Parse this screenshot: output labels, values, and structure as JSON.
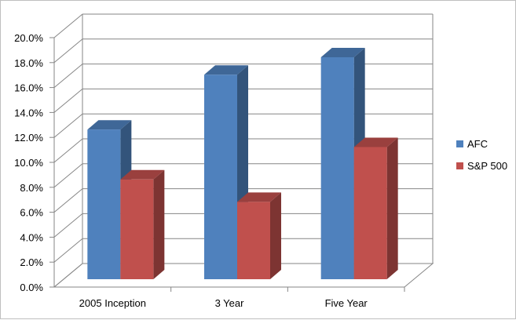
{
  "chart_data": {
    "type": "bar",
    "title": "",
    "xlabel": "",
    "ylabel": "",
    "categories": [
      "2005 Inception",
      "3 Year",
      "Five Year"
    ],
    "series": [
      {
        "name": "AFC",
        "values": [
          12.0,
          16.4,
          17.8
        ],
        "color": "#4f81bd"
      },
      {
        "name": "S&P 500",
        "values": [
          8.0,
          6.2,
          10.6
        ],
        "color": "#c0504d"
      }
    ],
    "ylim": [
      0,
      20
    ],
    "ytick_step": 2,
    "ytick_labels": [
      "0.0%",
      "2.0%",
      "4.0%",
      "6.0%",
      "8.0%",
      "10.0%",
      "12.0%",
      "14.0%",
      "16.0%",
      "18.0%",
      "20.0%"
    ],
    "grid": true,
    "three_d": true,
    "legend_position": "right"
  }
}
